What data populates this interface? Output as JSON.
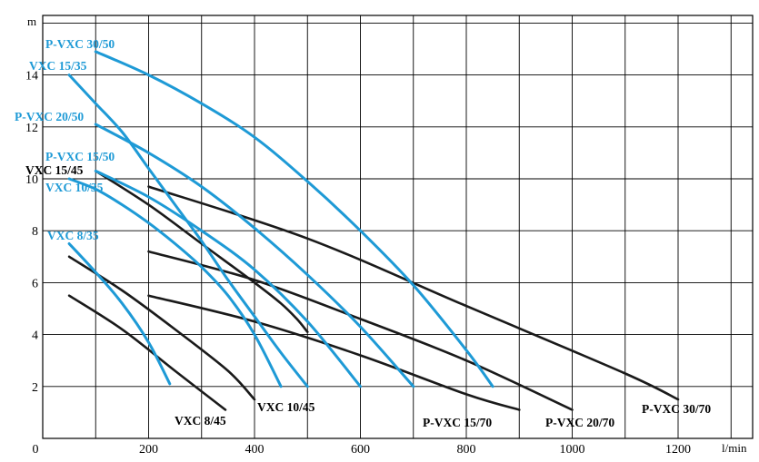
{
  "chart_data": {
    "type": "line",
    "title": "",
    "xlabel": "l/min",
    "ylabel": "m",
    "xlim": [
      0,
      1300
    ],
    "ylim": [
      0,
      16
    ],
    "x_ticks": [
      0,
      200,
      400,
      600,
      800,
      1000,
      1200
    ],
    "y_ticks": [
      2,
      4,
      6,
      8,
      10,
      12,
      14
    ],
    "grid": true,
    "colors": {
      "blue_series": "#1e9ad6",
      "black_series": "#1a1a1a"
    },
    "series": [
      {
        "name": "P-VXC 30/50",
        "color": "blue",
        "x": [
          100,
          200,
          300,
          400,
          500,
          600,
          700,
          800,
          850
        ],
        "y": [
          14.9,
          14.0,
          12.9,
          11.6,
          9.9,
          8.0,
          5.9,
          3.4,
          2.0
        ]
      },
      {
        "name": "VXC 15/35",
        "color": "blue",
        "x": [
          50,
          100,
          150,
          200,
          250,
          300,
          350,
          400,
          450,
          500
        ],
        "y": [
          14.0,
          12.9,
          11.8,
          10.4,
          9.0,
          7.6,
          6.1,
          4.7,
          3.3,
          2.0
        ]
      },
      {
        "name": "P-VXC 20/50",
        "color": "blue",
        "x": [
          100,
          200,
          300,
          400,
          500,
          600,
          700
        ],
        "y": [
          12.1,
          11.0,
          9.7,
          8.1,
          6.3,
          4.3,
          2.0
        ]
      },
      {
        "name": "P-VXC 15/50",
        "color": "blue",
        "x": [
          100,
          200,
          300,
          400,
          500,
          600
        ],
        "y": [
          10.3,
          9.3,
          8.0,
          6.5,
          4.5,
          2.0
        ]
      },
      {
        "name": "VXC 10/35",
        "color": "blue",
        "x": [
          50,
          100,
          150,
          200,
          250,
          300,
          350,
          400,
          450
        ],
        "y": [
          10.0,
          9.6,
          9.0,
          8.3,
          7.5,
          6.6,
          5.5,
          4.0,
          2.0
        ]
      },
      {
        "name": "VXC 8/35",
        "color": "blue",
        "x": [
          50,
          100,
          150,
          200,
          240
        ],
        "y": [
          7.5,
          6.4,
          5.2,
          3.7,
          2.1
        ]
      },
      {
        "name": "VXC 15/45",
        "color": "black",
        "x": [
          100,
          200,
          300,
          400,
          450,
          480,
          500
        ],
        "y": [
          10.3,
          9.0,
          7.5,
          6.0,
          5.2,
          4.6,
          4.1
        ]
      },
      {
        "name": "VXC 10/45",
        "color": "black",
        "x": [
          50,
          150,
          250,
          350,
          400
        ],
        "y": [
          7.0,
          5.7,
          4.2,
          2.6,
          1.5
        ]
      },
      {
        "name": "VXC 8/45",
        "color": "black",
        "x": [
          50,
          150,
          250,
          345
        ],
        "y": [
          5.5,
          4.2,
          2.6,
          1.1
        ]
      },
      {
        "name": "P-VXC 15/70",
        "color": "black",
        "x": [
          200,
          400,
          600,
          800,
          900
        ],
        "y": [
          5.5,
          4.5,
          3.2,
          1.7,
          1.1
        ]
      },
      {
        "name": "P-VXC 20/70",
        "color": "black",
        "x": [
          200,
          400,
          600,
          800,
          1000
        ],
        "y": [
          7.2,
          6.1,
          4.6,
          3.0,
          1.1
        ]
      },
      {
        "name": "P-VXC 30/70",
        "color": "black",
        "x": [
          200,
          500,
          800,
          1100,
          1200
        ],
        "y": [
          9.7,
          7.7,
          5.1,
          2.5,
          1.5
        ]
      }
    ]
  }
}
